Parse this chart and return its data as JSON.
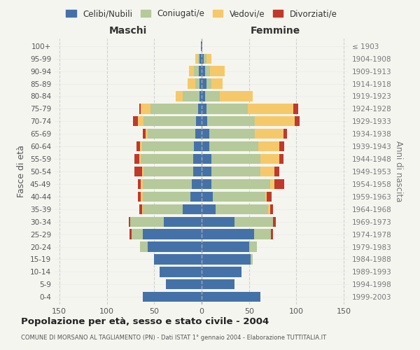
{
  "age_groups": [
    "0-4",
    "5-9",
    "10-14",
    "15-19",
    "20-24",
    "25-29",
    "30-34",
    "35-39",
    "40-44",
    "45-49",
    "50-54",
    "55-59",
    "60-64",
    "65-69",
    "70-74",
    "75-79",
    "80-84",
    "85-89",
    "90-94",
    "95-99",
    "100+"
  ],
  "birth_years": [
    "1999-2003",
    "1994-1998",
    "1989-1993",
    "1984-1988",
    "1979-1983",
    "1974-1978",
    "1969-1973",
    "1964-1968",
    "1959-1963",
    "1954-1958",
    "1949-1953",
    "1944-1948",
    "1939-1943",
    "1934-1938",
    "1929-1933",
    "1924-1928",
    "1919-1923",
    "1914-1918",
    "1909-1913",
    "1904-1908",
    "≤ 1903"
  ],
  "maschi_celibi": [
    62,
    38,
    44,
    50,
    57,
    62,
    40,
    20,
    12,
    10,
    9,
    9,
    8,
    7,
    6,
    4,
    2,
    2,
    3,
    2,
    1
  ],
  "maschi_coniugati": [
    0,
    0,
    0,
    0,
    8,
    12,
    35,
    42,
    50,
    52,
    52,
    55,
    55,
    50,
    55,
    50,
    18,
    5,
    5,
    2,
    0
  ],
  "maschi_vedovi": [
    0,
    0,
    0,
    0,
    0,
    0,
    0,
    1,
    2,
    2,
    2,
    2,
    2,
    2,
    6,
    10,
    7,
    8,
    5,
    3,
    0
  ],
  "maschi_divorziati": [
    0,
    0,
    0,
    0,
    0,
    2,
    2,
    3,
    3,
    3,
    8,
    5,
    4,
    3,
    5,
    2,
    0,
    0,
    0,
    0,
    0
  ],
  "femmine_celibi": [
    62,
    35,
    42,
    52,
    50,
    55,
    35,
    15,
    12,
    10,
    10,
    10,
    8,
    8,
    6,
    5,
    4,
    5,
    4,
    2,
    1
  ],
  "femmine_coniugati": [
    0,
    0,
    0,
    2,
    8,
    18,
    40,
    55,
    55,
    62,
    52,
    52,
    52,
    48,
    50,
    44,
    15,
    5,
    5,
    3,
    0
  ],
  "femmine_vedovi": [
    0,
    0,
    0,
    0,
    0,
    0,
    0,
    2,
    2,
    5,
    15,
    20,
    22,
    30,
    42,
    48,
    35,
    12,
    15,
    5,
    0
  ],
  "femmine_divorziati": [
    0,
    0,
    0,
    0,
    0,
    2,
    3,
    3,
    5,
    10,
    5,
    4,
    5,
    4,
    5,
    5,
    0,
    0,
    0,
    0,
    0
  ],
  "colors": {
    "celibi": "#4472a8",
    "coniugati": "#b5c99a",
    "vedovi": "#f5c96a",
    "divorziati": "#c0392b"
  },
  "title": "Popolazione per età, sesso e stato civile - 2004",
  "subtitle": "COMUNE DI MORSANO AL TAGLIAMENTO (PN) - Dati ISTAT 1° gennaio 2004 - Elaborazione TUTTITALIA.IT",
  "xlabel_maschi": "Maschi",
  "xlabel_femmine": "Femmine",
  "ylabel_left": "Fasce di età",
  "ylabel_right": "Anni di nascita",
  "xlim": 155,
  "legend_labels": [
    "Celibi/Nubili",
    "Coniugati/e",
    "Vedovi/e",
    "Divorziati/e"
  ],
  "bg_color": "#f5f5f0",
  "grid_color": "#cccccc"
}
